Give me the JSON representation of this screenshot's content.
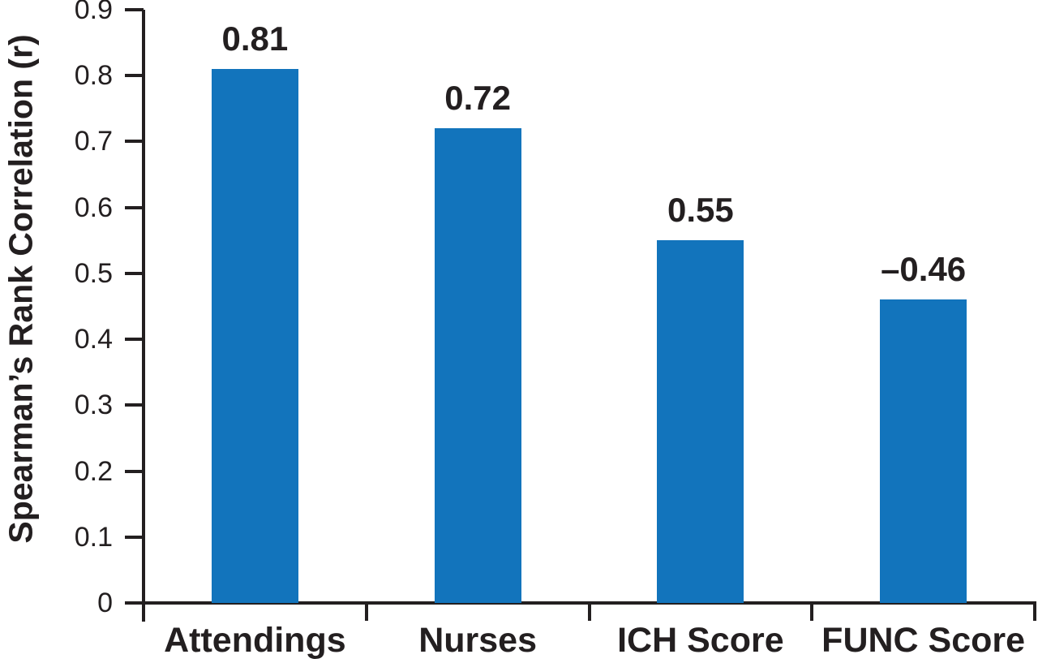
{
  "chart_data": {
    "type": "bar",
    "title": "",
    "xlabel": "",
    "ylabel": "Spearman’s Rank Correlation (r)",
    "categories": [
      "Attendings",
      "Nurses",
      "ICH Score",
      "FUNC Score"
    ],
    "values": [
      0.81,
      0.72,
      0.55,
      -0.46
    ],
    "plotted_bar_heights": [
      0.81,
      0.72,
      0.55,
      0.46
    ],
    "value_labels": [
      "0.81",
      "0.72",
      "0.55",
      "–0.46"
    ],
    "ylim": [
      0,
      0.9
    ],
    "yticks": [
      0,
      0.1,
      0.2,
      0.3,
      0.4,
      0.5,
      0.6,
      0.7,
      0.8,
      0.9
    ],
    "ytick_labels": [
      "0",
      "0.1",
      "0.2",
      "0.3",
      "0.4",
      "0.5",
      "0.6",
      "0.7",
      "0.8",
      "0.9"
    ],
    "grid": false,
    "legend": null,
    "bar_color": "#1274BC",
    "axis_color": "#231F20",
    "text_color": "#231F20",
    "background_color": "#ffffff"
  }
}
